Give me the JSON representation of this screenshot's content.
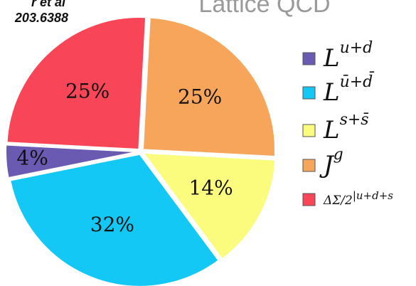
{
  "chart_data": {
    "type": "pie",
    "title": "Lattice QCD",
    "annotations": [
      "r et al",
      "203.6388"
    ],
    "categories": [
      {
        "base": "J",
        "sup": "g"
      },
      {
        "base": "L",
        "sup": "s+s̄"
      },
      {
        "base": "L",
        "sup": "ū+d̄"
      },
      {
        "base": "L",
        "sup": "u+d"
      },
      {
        "base": "ΔΣ/2",
        "sup": "|u+d+s"
      }
    ],
    "values": [
      25,
      14,
      32,
      4,
      25
    ],
    "value_labels": [
      "25%",
      "14%",
      "32%",
      "4%",
      "25%"
    ],
    "colors": [
      "#f7a55a",
      "#fbfb7e",
      "#14c8f5",
      "#6a5ab2",
      "#f94558"
    ],
    "legend_order": [
      3,
      2,
      1,
      0,
      4
    ],
    "legend": "right"
  }
}
